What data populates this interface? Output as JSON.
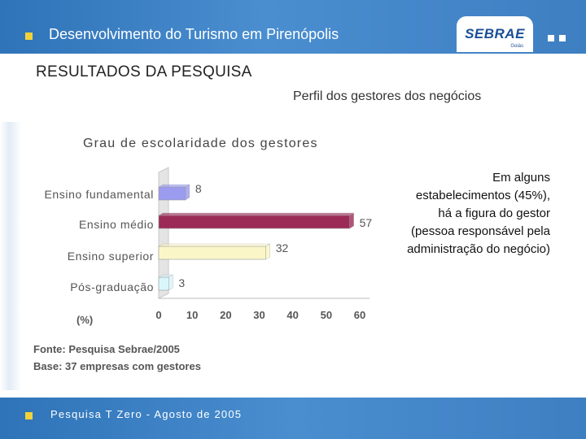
{
  "header": {
    "title": "Desenvolvimento do Turismo em Pirenópolis",
    "logo_text": "SEBRAE",
    "logo_sub": "Goiás"
  },
  "section_title": "RESULTADOS DA PESQUISA",
  "subtitle": "Perfil dos gestores dos negócios",
  "note": "Em alguns estabelecimentos (45%), há a figura do gestor (pessoa responsável pela administração do negócio)",
  "chart_data": {
    "type": "bar",
    "orientation": "horizontal",
    "title": "Grau de escolaridade dos gestores",
    "xlabel": "(%)",
    "categories": [
      "Ensino fundamental",
      "Ensino médio",
      "Ensino superior",
      "Pós-graduação"
    ],
    "values": [
      8,
      57,
      32,
      3
    ],
    "value_labels": [
      "8",
      "57",
      "32",
      "3"
    ],
    "colors": [
      "#9b9bf0",
      "#9c2a57",
      "#fbf6c8",
      "#d9f6fb"
    ],
    "xlim": [
      0,
      60
    ],
    "xticks": [
      "0",
      "10",
      "20",
      "30",
      "40",
      "50",
      "60"
    ],
    "grid": false,
    "source": "Fonte: Pesquisa Sebrae/2005",
    "base": "Base: 37 empresas com gestores"
  },
  "footer": {
    "text": "Pesquisa T Zero - Agosto de 2005"
  }
}
